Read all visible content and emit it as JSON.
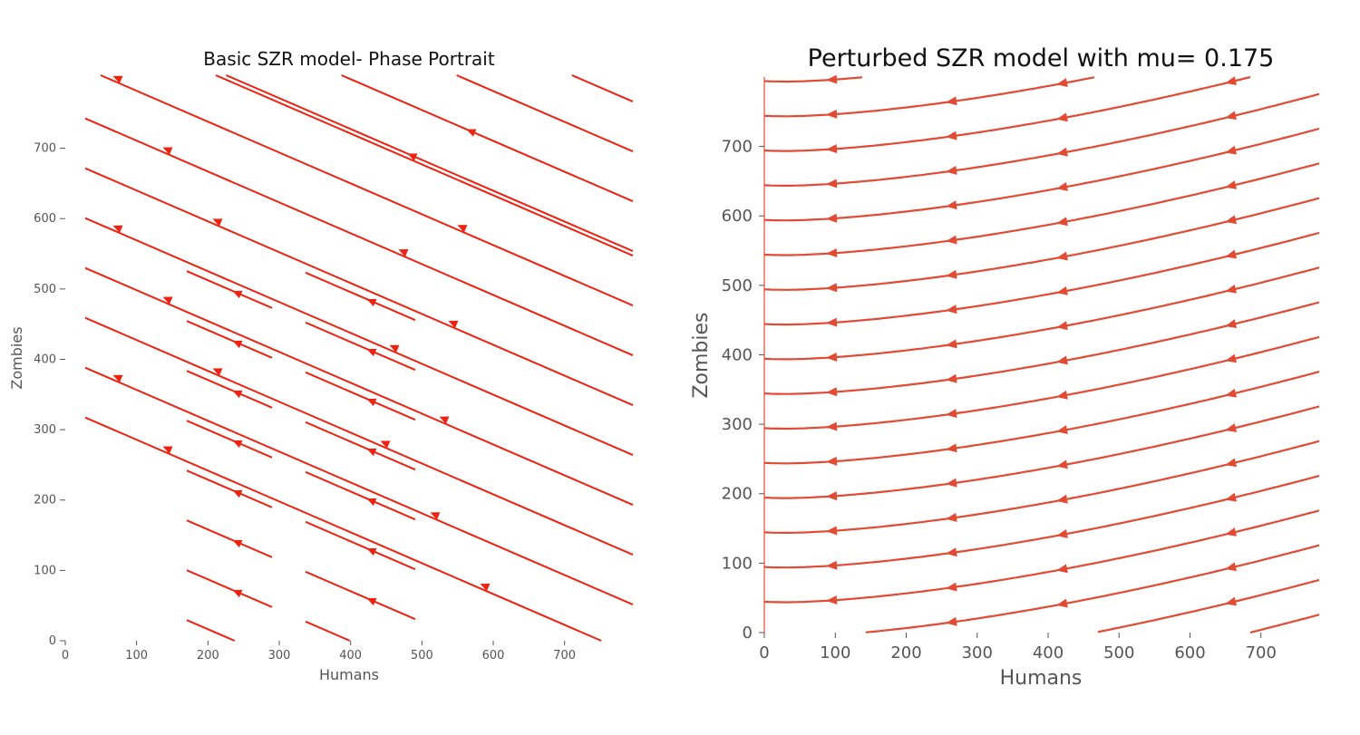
{
  "colors": {
    "stream_left": "#ee2211",
    "stream_right": "#e24a33",
    "text": "#555555",
    "title": "#111111"
  },
  "chart_data": [
    {
      "type": "streamplot",
      "title": "Basic SZR model- Phase Portrait",
      "xlabel": "Humans",
      "ylabel": "Zombies",
      "xlim": [
        0,
        800
      ],
      "ylim": [
        0,
        800
      ],
      "xticks": [
        0,
        100,
        200,
        300,
        400,
        500,
        600,
        700
      ],
      "yticks": [
        0,
        100,
        200,
        300,
        400,
        500,
        600,
        700
      ],
      "grid": false,
      "direction_slope": -0.55,
      "direction": "toward decreasing humans, increasing zombies"
    },
    {
      "type": "streamplot",
      "title": "Perturbed SZR model with mu= 0.175",
      "xlabel": "Humans",
      "ylabel": "Zombies",
      "xlim": [
        0,
        800
      ],
      "ylim": [
        0,
        800
      ],
      "xticks": [
        0,
        100,
        200,
        300,
        400,
        500,
        600,
        700
      ],
      "yticks": [
        0,
        100,
        200,
        300,
        400,
        500,
        600,
        700
      ],
      "grid": false,
      "mu": 0.175,
      "direction": "toward decreasing humans along curves bending upward"
    }
  ]
}
